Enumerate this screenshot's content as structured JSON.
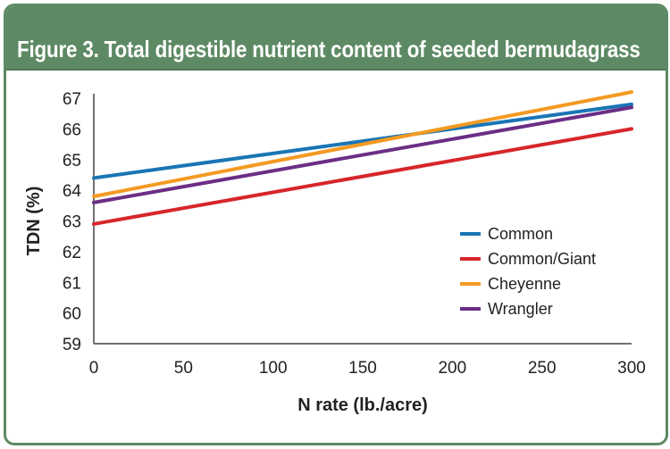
{
  "figure": {
    "title": "Figure 3. Total digestible nutrient content of seeded bermudagrass"
  },
  "colors": {
    "frame": "#5d8a64",
    "title_bar": "#5d8a64",
    "title_text": "#ffffff"
  },
  "chart_data": {
    "type": "line",
    "title": "Figure 3. Total digestible nutrient content of seeded bermudagrass",
    "xlabel": "N rate (lb./acre)",
    "ylabel": "TDN (%)",
    "xlim": [
      0,
      300
    ],
    "ylim": [
      59,
      67
    ],
    "xticks": [
      0,
      50,
      100,
      150,
      200,
      250,
      300
    ],
    "yticks": [
      59,
      60,
      61,
      62,
      63,
      64,
      65,
      66,
      67
    ],
    "grid": false,
    "legend_position": "right",
    "series": [
      {
        "name": "Common",
        "color": "#1a75b5",
        "x": [
          0,
          300
        ],
        "y": [
          64.4,
          66.8
        ]
      },
      {
        "name": "Common/Giant",
        "color": "#d6262b",
        "x": [
          0,
          300
        ],
        "y": [
          62.9,
          66.0
        ]
      },
      {
        "name": "Cheyenne",
        "color": "#f39a22",
        "x": [
          0,
          300
        ],
        "y": [
          63.8,
          67.2
        ]
      },
      {
        "name": "Wrangler",
        "color": "#6b2e86",
        "x": [
          0,
          300
        ],
        "y": [
          63.6,
          66.7
        ]
      }
    ]
  }
}
